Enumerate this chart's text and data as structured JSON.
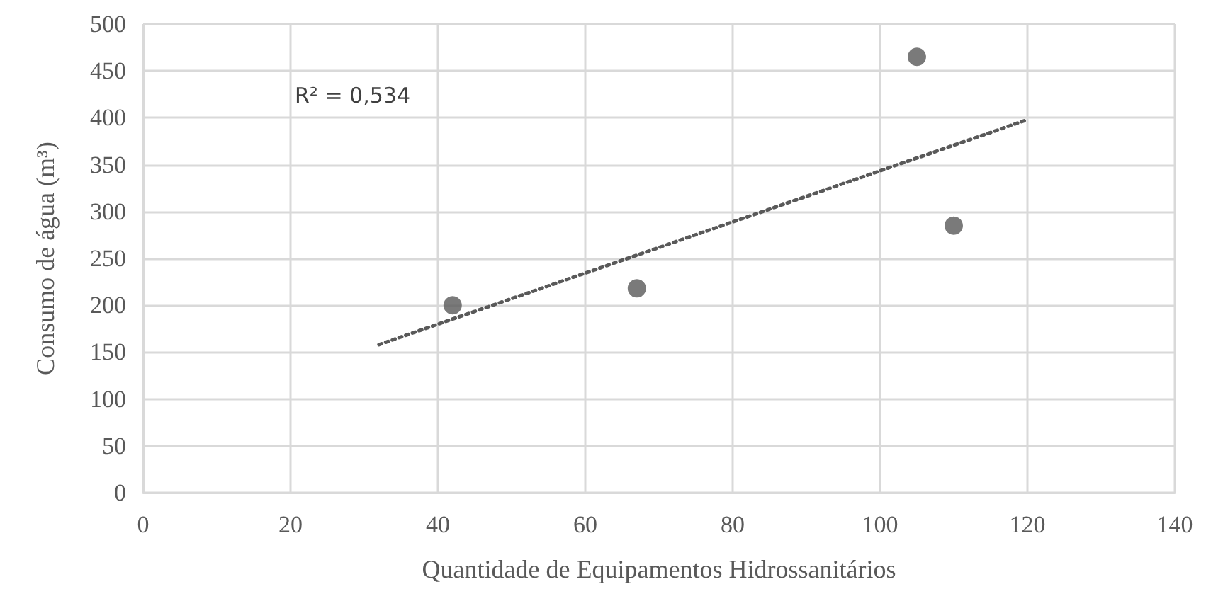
{
  "chart_data": {
    "type": "scatter",
    "xlabel": "Quantidade de Equipamentos Hidrossanitários",
    "ylabel": "Consumo de água (m³)",
    "annotations": [
      "R² = 0,534"
    ],
    "series": [
      {
        "color": "#595959",
        "x": [
          42,
          67,
          105,
          110
        ],
        "values": [
          200,
          218,
          465,
          285
        ],
        "marker": "circle"
      },
      {
        "type": "line",
        "color": "#595959",
        "x": [
          32,
          120
        ],
        "values": [
          158,
          398
        ],
        "line_style": "dotted",
        "marker": "none"
      }
    ],
    "xlim": [
      0,
      140
    ],
    "xticks": [
      0,
      20,
      40,
      60,
      80,
      100,
      120,
      140
    ],
    "ylim": [
      0,
      500
    ],
    "yticks": [
      0,
      50,
      100,
      150,
      200,
      250,
      300,
      350,
      400,
      450,
      500
    ],
    "grid": true
  }
}
